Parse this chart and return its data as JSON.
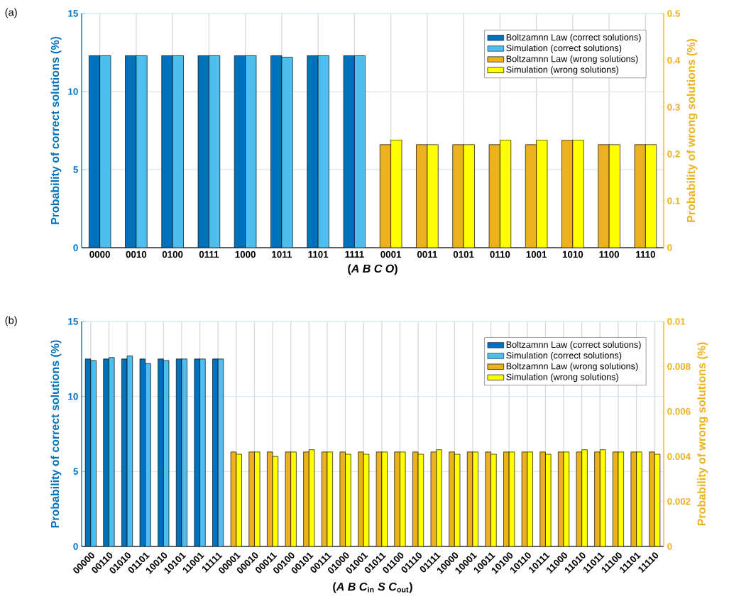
{
  "chart_data": [
    {
      "type": "bar",
      "categories": [
        "0000",
        "0010",
        "0100",
        "0111",
        "1000",
        "1011",
        "1101",
        "1111",
        "0001",
        "0011",
        "0101",
        "0110",
        "1001",
        "1010",
        "1100",
        "1110"
      ],
      "series": [
        {
          "name": "Boltzamnn Law (correct solutions)",
          "color": "#0072bd",
          "axis": "y",
          "values": [
            12.3,
            12.3,
            12.3,
            12.3,
            12.3,
            12.3,
            12.3,
            12.3,
            null,
            null,
            null,
            null,
            null,
            null,
            null,
            null
          ]
        },
        {
          "name": "Simulation (correct solutions)",
          "color": "#4dbeee",
          "axis": "y",
          "values": [
            12.3,
            12.3,
            12.3,
            12.3,
            12.3,
            12.2,
            12.3,
            12.3,
            null,
            null,
            null,
            null,
            null,
            null,
            null,
            null
          ]
        },
        {
          "name": "Boltzamnn Law (wrong solutions)",
          "color": "#edb120",
          "axis": "y2",
          "values": [
            null,
            null,
            null,
            null,
            null,
            null,
            null,
            null,
            0.22,
            0.22,
            0.22,
            0.22,
            0.22,
            0.23,
            0.22,
            0.22
          ]
        },
        {
          "name": "Simulation (wrong solutions)",
          "color": "#ffff00",
          "axis": "y2",
          "values": [
            null,
            null,
            null,
            null,
            null,
            null,
            null,
            null,
            0.23,
            0.22,
            0.22,
            0.23,
            0.23,
            0.23,
            0.22,
            0.22
          ]
        }
      ],
      "xlabel": "(*A B C O*)",
      "ylabel": "Probability of correct solutions (%)",
      "y2label": "Probability of wrong solutions (%)",
      "ylim": [
        0,
        15
      ],
      "yticks": [
        0,
        5,
        10,
        15
      ],
      "y2lim": [
        0,
        0.5
      ],
      "y2ticks": [
        0,
        0.1,
        0.2,
        0.3,
        0.4,
        0.5
      ],
      "grid": true,
      "legend": "top right",
      "annotations": [
        "(a)"
      ]
    },
    {
      "type": "bar",
      "categories": [
        "00000",
        "00110",
        "01010",
        "01101",
        "10010",
        "10101",
        "11001",
        "11111",
        "00001",
        "00010",
        "00011",
        "00100",
        "00101",
        "00111",
        "01000",
        "01001",
        "01011",
        "01100",
        "01110",
        "01111",
        "10000",
        "10001",
        "10011",
        "10100",
        "10110",
        "10111",
        "11000",
        "11010",
        "11011",
        "11100",
        "11101",
        "11110"
      ],
      "series": [
        {
          "name": "Boltzamnn Law (correct solutions)",
          "color": "#0072bd",
          "axis": "y",
          "values": [
            12.5,
            12.5,
            12.5,
            12.5,
            12.5,
            12.5,
            12.5,
            12.5,
            null,
            null,
            null,
            null,
            null,
            null,
            null,
            null,
            null,
            null,
            null,
            null,
            null,
            null,
            null,
            null,
            null,
            null,
            null,
            null,
            null,
            null,
            null,
            null
          ]
        },
        {
          "name": "Simulation (correct solutions)",
          "color": "#4dbeee",
          "axis": "y",
          "values": [
            12.4,
            12.6,
            12.7,
            12.2,
            12.4,
            12.5,
            12.5,
            12.5,
            null,
            null,
            null,
            null,
            null,
            null,
            null,
            null,
            null,
            null,
            null,
            null,
            null,
            null,
            null,
            null,
            null,
            null,
            null,
            null,
            null,
            null,
            null,
            null
          ]
        },
        {
          "name": "Boltzamnn Law (wrong solutions)",
          "color": "#edb120",
          "axis": "y2",
          "values": [
            null,
            null,
            null,
            null,
            null,
            null,
            null,
            null,
            0.0042,
            0.0042,
            0.0042,
            0.0042,
            0.0042,
            0.0042,
            0.0042,
            0.0042,
            0.0042,
            0.0042,
            0.0042,
            0.0042,
            0.0042,
            0.0042,
            0.0042,
            0.0042,
            0.0042,
            0.0042,
            0.0042,
            0.0042,
            0.0042,
            0.0042,
            0.0042,
            0.0042
          ]
        },
        {
          "name": "Simulation (wrong solutions)",
          "color": "#ffff00",
          "axis": "y2",
          "values": [
            null,
            null,
            null,
            null,
            null,
            null,
            null,
            null,
            0.0041,
            0.0042,
            0.004,
            0.0042,
            0.0043,
            0.0042,
            0.0041,
            0.0041,
            0.0042,
            0.0042,
            0.0041,
            0.0043,
            0.0041,
            0.0042,
            0.0041,
            0.0042,
            0.0042,
            0.0041,
            0.0042,
            0.0043,
            0.0043,
            0.0042,
            0.0042,
            0.0041
          ]
        }
      ],
      "xlabel": "(*A B C*$_{in}$ *S C*$_{out}$)",
      "ylabel": "Probability of correct solutions (%)",
      "y2label": "Probability of wrong solutions (%)",
      "ylim": [
        0,
        15
      ],
      "yticks": [
        0,
        5,
        10,
        15
      ],
      "y2lim": [
        0,
        0.01
      ],
      "y2ticks": [
        0,
        0.002,
        0.004,
        0.006,
        0.008,
        0.01
      ],
      "grid": true,
      "legend": "top right",
      "annotations": [
        "(b)"
      ]
    }
  ]
}
